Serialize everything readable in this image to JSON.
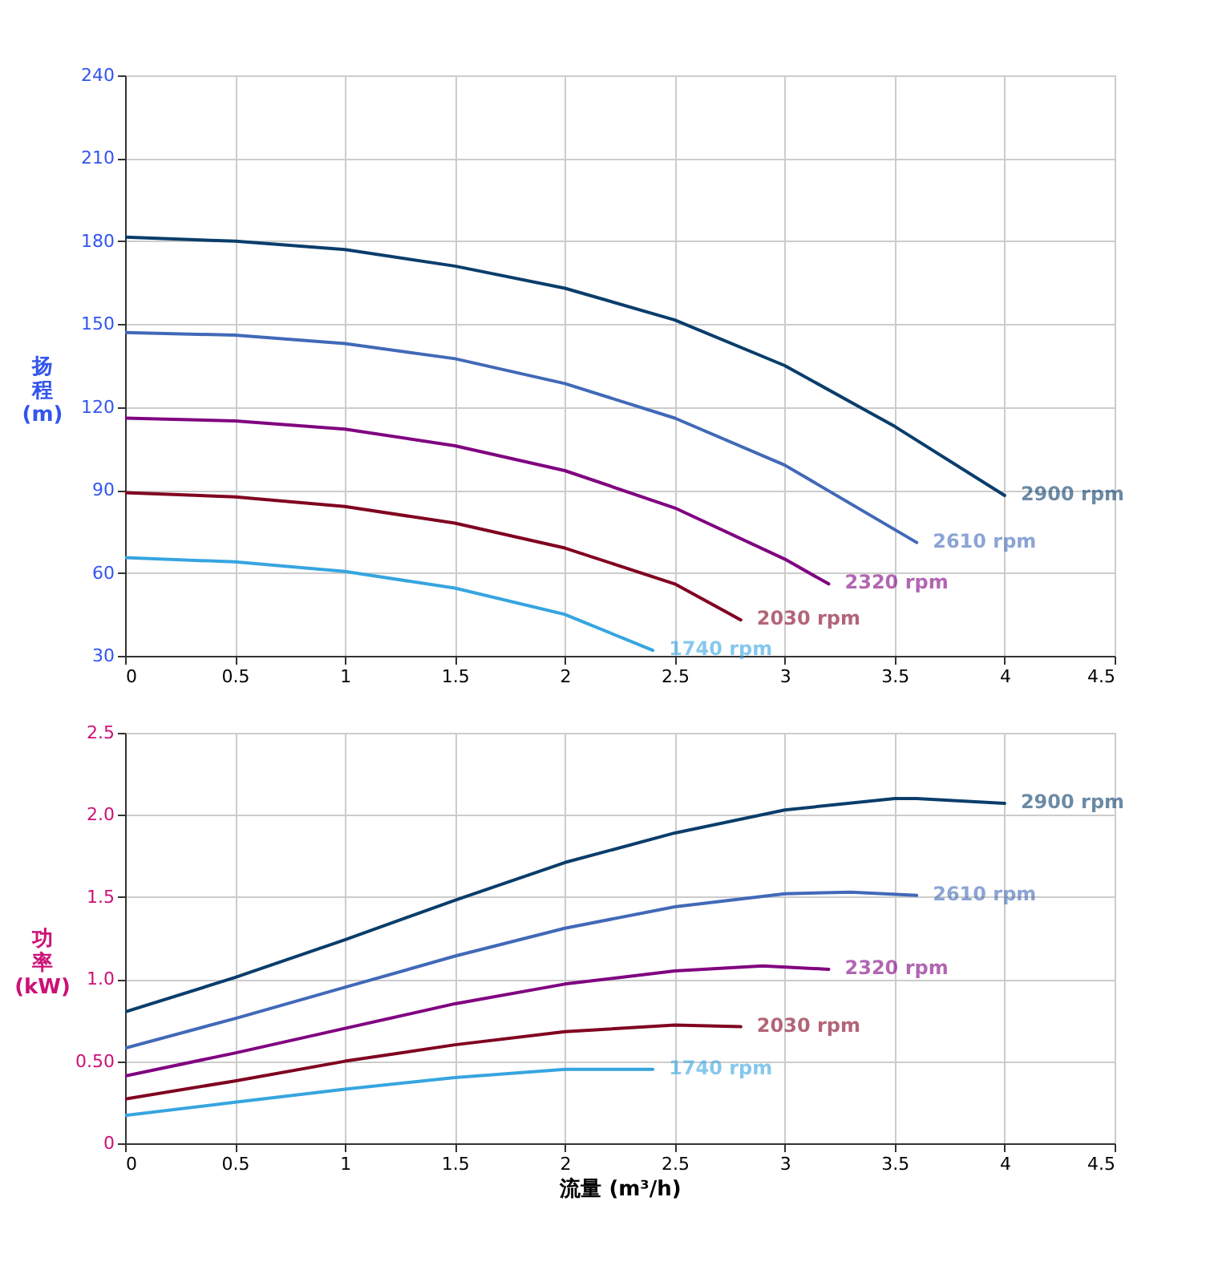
{
  "chart_data": [
    {
      "type": "line",
      "ylabel": "扬程 (m)",
      "xlim": [
        0,
        4.5
      ],
      "xticks": [
        0,
        0.5,
        1,
        1.5,
        2,
        2.5,
        3,
        3.5,
        4,
        4.5
      ],
      "ylim": [
        30,
        240
      ],
      "yticks": [
        30,
        60,
        90,
        120,
        150,
        180,
        210,
        240
      ],
      "grid": true,
      "legend": false,
      "marker": "none",
      "line_style": "solid",
      "series": [
        {
          "name": "2900 rpm",
          "color": "#0a3d6b",
          "x": [
            0,
            0.5,
            1,
            1.5,
            2,
            2.5,
            3,
            3.5,
            4
          ],
          "values": [
            181.5,
            180,
            177,
            171,
            163,
            151.5,
            135,
            113,
            88
          ]
        },
        {
          "name": "2610 rpm",
          "color": "#4169b8",
          "x": [
            0,
            0.5,
            1,
            1.5,
            2,
            2.5,
            3,
            3.6
          ],
          "values": [
            147,
            146,
            143,
            137.5,
            128.5,
            116,
            99,
            71
          ]
        },
        {
          "name": "2320 rpm",
          "color": "#800080",
          "x": [
            0,
            0.5,
            1,
            1.5,
            2,
            2.5,
            3,
            3.2
          ],
          "values": [
            116,
            115,
            112,
            106,
            97,
            83.5,
            65,
            56
          ]
        },
        {
          "name": "2030 rpm",
          "color": "#800020",
          "x": [
            0,
            0.5,
            1,
            1.5,
            2,
            2.5,
            2.8
          ],
          "values": [
            89,
            87.5,
            84,
            78,
            69,
            56,
            43
          ]
        },
        {
          "name": "1740 rpm",
          "color": "#36a5e0",
          "x": [
            0,
            0.5,
            1,
            1.5,
            2,
            2.4
          ],
          "values": [
            65.5,
            64,
            60.5,
            54.5,
            45,
            32
          ]
        }
      ]
    },
    {
      "type": "line",
      "ylabel": "功率 (kW)",
      "xlabel": "流量 (m³/h)",
      "xlim": [
        0,
        4.5
      ],
      "xticks": [
        0,
        0.5,
        1,
        1.5,
        2,
        2.5,
        3,
        3.5,
        4,
        4.5
      ],
      "ylim": [
        0,
        2.5
      ],
      "yticks": [
        0,
        {
          "value": 0.5,
          "label": "0.50"
        },
        {
          "value": 1,
          "label": "1.0"
        },
        1.5,
        {
          "value": 2,
          "label": "2.0"
        },
        2.5
      ],
      "grid": true,
      "legend": false,
      "marker": "none",
      "line_style": "solid",
      "series": [
        {
          "name": "2900 rpm",
          "color": "#0a3d6b",
          "x": [
            0,
            0.5,
            1,
            1.5,
            2,
            2.5,
            3,
            3.5,
            3.6,
            4
          ],
          "values": [
            0.8,
            1.01,
            1.24,
            1.48,
            1.71,
            1.89,
            2.03,
            2.1,
            2.1,
            2.07
          ]
        },
        {
          "name": "2610 rpm",
          "color": "#4169b8",
          "x": [
            0,
            0.5,
            1,
            1.5,
            2,
            2.5,
            3,
            3.3,
            3.6
          ],
          "values": [
            0.58,
            0.76,
            0.95,
            1.14,
            1.31,
            1.44,
            1.52,
            1.53,
            1.51
          ]
        },
        {
          "name": "2320 rpm",
          "color": "#800080",
          "x": [
            0,
            0.5,
            1,
            1.5,
            2,
            2.5,
            2.9,
            3.2
          ],
          "values": [
            0.41,
            0.55,
            0.7,
            0.85,
            0.97,
            1.05,
            1.08,
            1.06
          ]
        },
        {
          "name": "2030 rpm",
          "color": "#800020",
          "x": [
            0,
            0.5,
            1,
            1.5,
            2,
            2.5,
            2.8
          ],
          "values": [
            0.27,
            0.38,
            0.5,
            0.6,
            0.68,
            0.72,
            0.71
          ]
        },
        {
          "name": "1740 rpm",
          "color": "#36a5e0",
          "x": [
            0,
            0.5,
            1,
            1.5,
            2,
            2.4
          ],
          "values": [
            0.17,
            0.25,
            0.33,
            0.4,
            0.45,
            0.45
          ]
        }
      ]
    }
  ]
}
